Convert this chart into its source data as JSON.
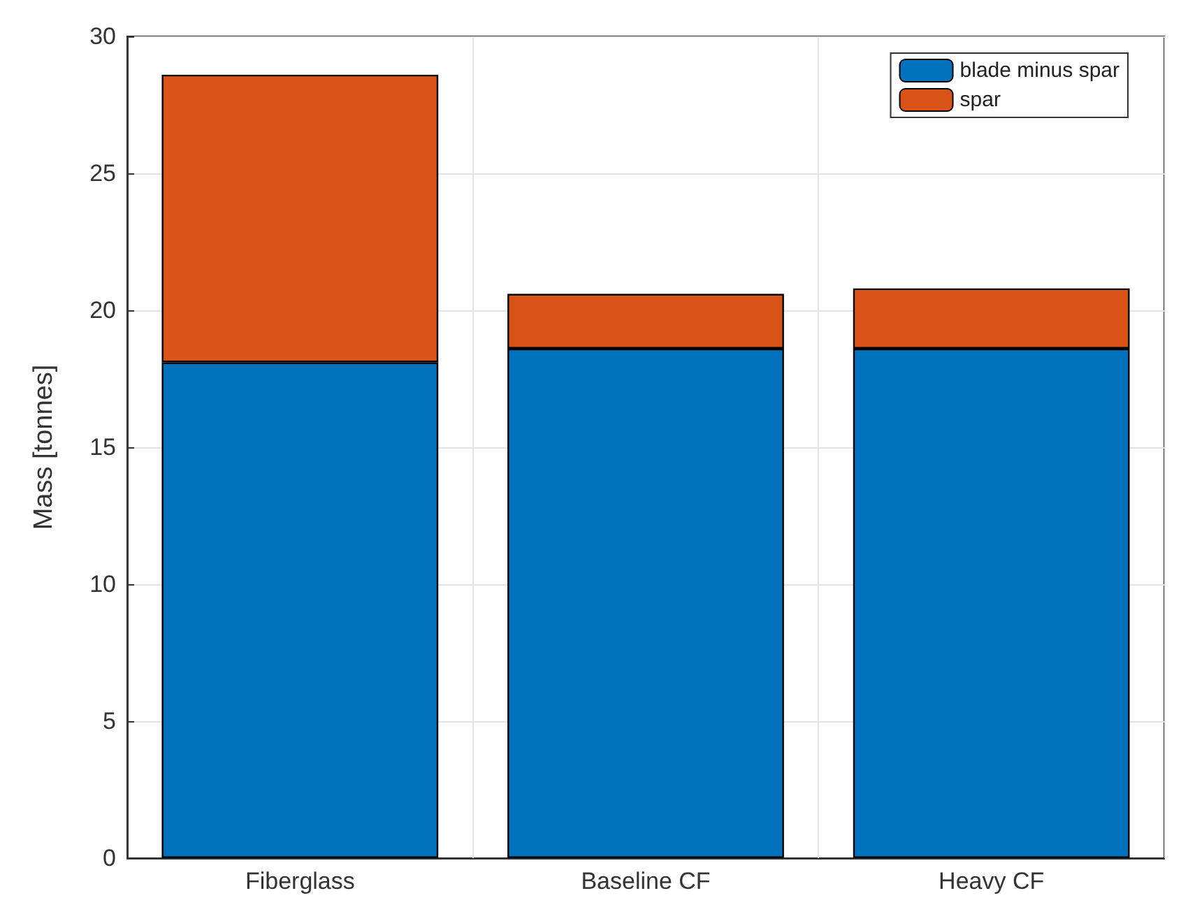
{
  "chart_data": {
    "type": "bar",
    "stacked": true,
    "ylabel": "Mass [tonnes]",
    "categories": [
      "Fiberglass",
      "Baseline CF",
      "Heavy CF"
    ],
    "series": [
      {
        "name": "blade minus spar",
        "color": "#0072bd",
        "values": [
          18.1,
          18.6,
          18.6
        ]
      },
      {
        "name": "spar",
        "color": "#d95319",
        "values": [
          10.5,
          2.0,
          2.2
        ]
      }
    ],
    "ylim": [
      0,
      30
    ],
    "yticks": [
      0,
      5,
      10,
      15,
      20,
      25,
      30
    ],
    "grid": true,
    "legend": "top right"
  }
}
